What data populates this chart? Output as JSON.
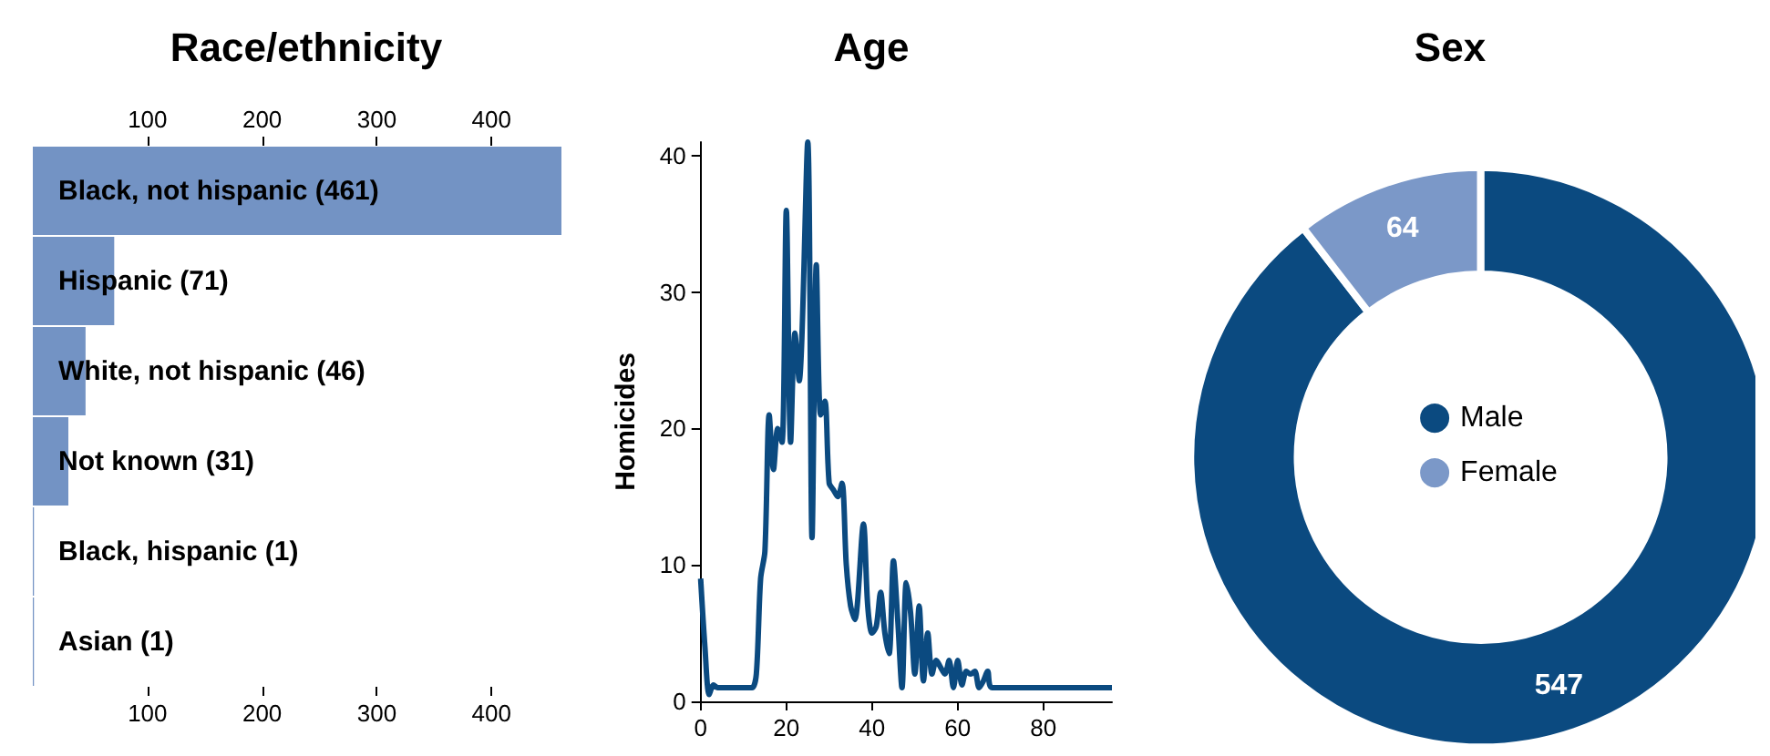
{
  "chart_data": [
    {
      "type": "bar",
      "title": "Race/ethnicity",
      "orientation": "horizontal",
      "categories": [
        "Black, not hispanic (461)",
        "Hispanic (71)",
        "White, not hispanic (46)",
        "Not known (31)",
        "Black, hispanic (1)",
        "Asian (1)"
      ],
      "values": [
        461,
        71,
        46,
        31,
        1,
        1
      ],
      "color": "#7393c4",
      "xlim": [
        0,
        461
      ],
      "xticks": [
        100,
        200,
        300,
        400
      ],
      "x2lim": [
        0,
        461
      ],
      "x2ticks": [
        100,
        200,
        300,
        400
      ],
      "grid": false,
      "legend": false
    },
    {
      "type": "line",
      "title": "Age",
      "ylabel": "Homicides",
      "color": "#0b4a80",
      "x": [
        0,
        1,
        2,
        3,
        4,
        6,
        8,
        10,
        12,
        13,
        14,
        15,
        16,
        17,
        18,
        19,
        20,
        21,
        22,
        23,
        25,
        26,
        27,
        28,
        29,
        30,
        31,
        32,
        33,
        34,
        35,
        36,
        38,
        39,
        40,
        41,
        42,
        43,
        44,
        45,
        46,
        47,
        48,
        49,
        50,
        51,
        52,
        53,
        54,
        55,
        56,
        57,
        58,
        59,
        60,
        61,
        62,
        63,
        64,
        65,
        66,
        67,
        68,
        96
      ],
      "values": [
        9,
        4,
        0.5,
        1.2,
        1,
        1,
        1,
        1,
        1,
        2,
        9,
        11,
        21,
        17,
        20,
        19,
        36,
        19,
        27,
        23.5,
        41,
        12,
        32,
        21,
        22,
        16,
        15.5,
        15,
        16,
        10,
        7,
        6,
        13,
        7,
        5,
        5.5,
        8,
        5,
        3.5,
        10.3,
        6,
        1,
        8.7,
        6.5,
        2,
        7,
        1.5,
        5,
        2,
        3,
        2.5,
        2,
        3,
        1,
        3,
        1.2,
        2.2,
        2,
        2.2,
        1,
        1.5,
        2.2,
        1,
        1
      ],
      "xlim": [
        0,
        96
      ],
      "xticks": [
        0,
        20,
        40,
        60,
        80
      ],
      "ylim": [
        0,
        41
      ],
      "yticks": [
        0,
        10,
        20,
        30,
        40
      ],
      "grid": false,
      "marker": "none",
      "line_style": "solid",
      "legend": false
    },
    {
      "type": "donut",
      "title": "Sex",
      "categories": [
        "Male",
        "Female"
      ],
      "values": [
        547,
        64
      ],
      "colors": [
        "#0b4a80",
        "#7b98c8"
      ],
      "data_labels": true,
      "legend": "center"
    }
  ]
}
